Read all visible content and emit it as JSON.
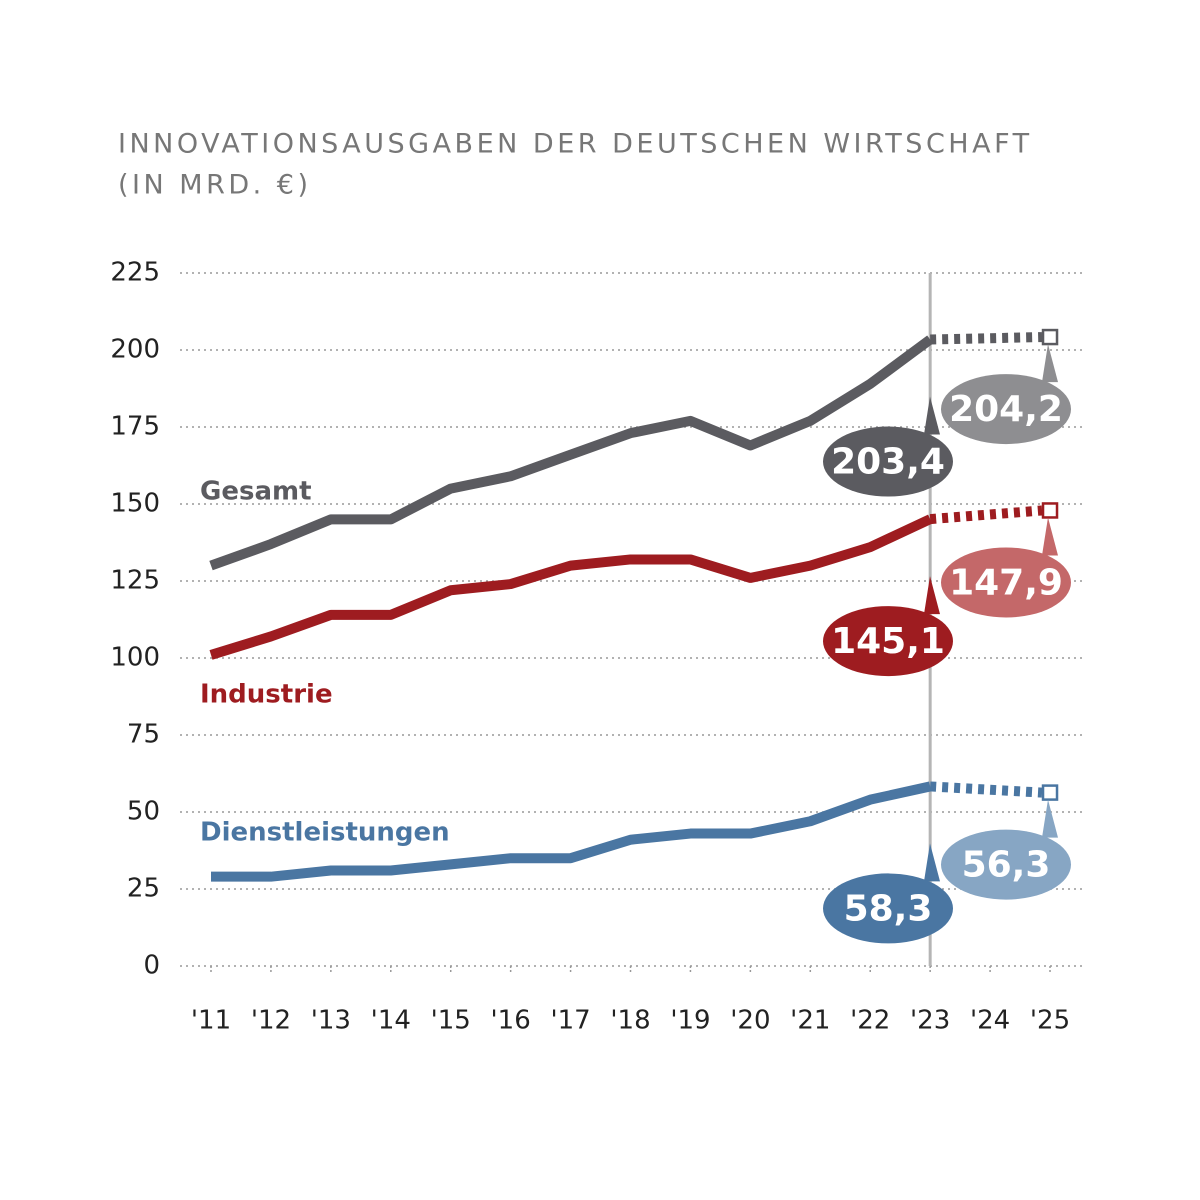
{
  "chart_data": {
    "type": "line",
    "title": "INNOVATIONSAUSGABEN DER DEUTSCHEN WIRTSCHAFT",
    "subtitle": "(IN MRD. €)",
    "categories": [
      "'11",
      "'12",
      "'13",
      "'14",
      "'15",
      "'16",
      "'17",
      "'18",
      "'19",
      "'20",
      "'21",
      "'22",
      "'23",
      "'24",
      "'25"
    ],
    "series": [
      {
        "name": "Gesamt",
        "color": "#5b5b60",
        "forecast_color": "#8e8e91",
        "values": [
          130,
          137,
          145,
          145,
          155,
          159,
          166,
          173,
          177,
          169,
          177,
          189,
          203.4,
          null,
          204.2
        ],
        "value_labels": [
          null,
          null,
          null,
          null,
          null,
          null,
          null,
          null,
          null,
          null,
          null,
          null,
          "203,4",
          null,
          "204,2"
        ]
      },
      {
        "name": "Industrie",
        "color": "#9e1c20",
        "forecast_color": "#c46869",
        "values": [
          101,
          107,
          114,
          114,
          122,
          124,
          130,
          132,
          132,
          126,
          130,
          136,
          145.1,
          null,
          147.9
        ],
        "value_labels": [
          null,
          null,
          null,
          null,
          null,
          null,
          null,
          null,
          null,
          null,
          null,
          null,
          "145,1",
          null,
          "147,9"
        ]
      },
      {
        "name": "Dienstleistungen",
        "color": "#4a76a2",
        "forecast_color": "#87a6c4",
        "values": [
          29,
          29,
          31,
          31,
          33,
          35,
          35,
          41,
          43,
          43,
          47,
          54,
          58.3,
          null,
          56.3
        ],
        "value_labels": [
          null,
          null,
          null,
          null,
          null,
          null,
          null,
          null,
          null,
          null,
          null,
          null,
          "58,3",
          null,
          "56,3"
        ]
      }
    ],
    "ylim": [
      0,
      225
    ],
    "yticks": [
      0,
      25,
      50,
      75,
      100,
      125,
      150,
      175,
      200,
      225
    ],
    "grid": true
  }
}
